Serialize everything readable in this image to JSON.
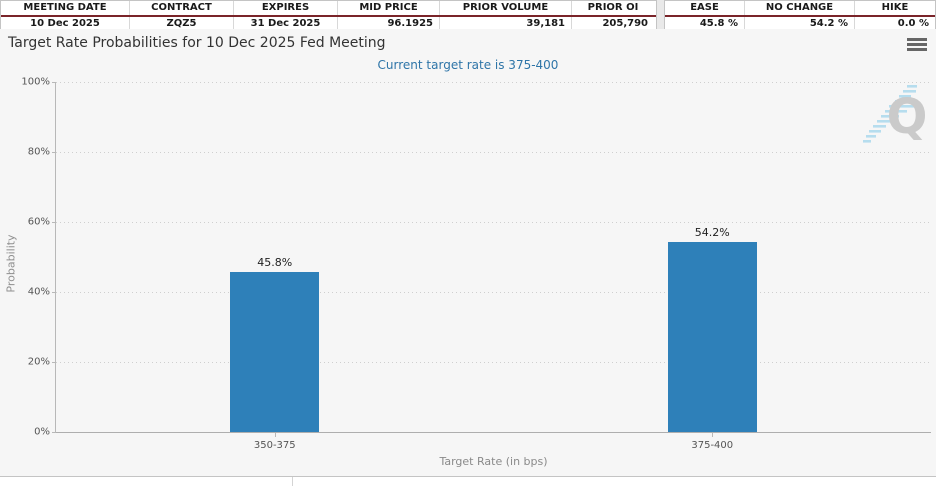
{
  "summary_table": {
    "left": {
      "headers": [
        "MEETING DATE",
        "CONTRACT",
        "EXPIRES",
        "MID PRICE",
        "PRIOR VOLUME",
        "PRIOR OI"
      ],
      "values": [
        "10 Dec 2025",
        "ZQZ5",
        "31 Dec 2025",
        "96.1925",
        "39,181",
        "205,790"
      ]
    },
    "right": {
      "headers": [
        "EASE",
        "NO CHANGE",
        "HIKE"
      ],
      "values": [
        "45.8 %",
        "54.2 %",
        "0.0 %"
      ]
    }
  },
  "chart": {
    "menu_icon": "hamburger-icon",
    "watermark_letter": "Q"
  },
  "chart_data": {
    "type": "bar",
    "title": "Target Rate Probabilities for 10 Dec 2025 Fed Meeting",
    "subtitle": "Current target rate is 375-400",
    "categories": [
      "350-375",
      "375-400"
    ],
    "values": [
      45.8,
      54.2
    ],
    "bar_labels": [
      "45.8%",
      "54.2%"
    ],
    "bar_color": "#2e80b9",
    "xlabel": "Target Rate (in bps)",
    "ylabel": "Probability",
    "ylim": [
      0,
      100
    ],
    "yticks": [
      0,
      20,
      40,
      60,
      80,
      100
    ],
    "ytick_labels": [
      "0%",
      "20%",
      "40%",
      "60%",
      "80%",
      "100%"
    ],
    "grid": "horizontal-dotted",
    "legend": "none"
  }
}
